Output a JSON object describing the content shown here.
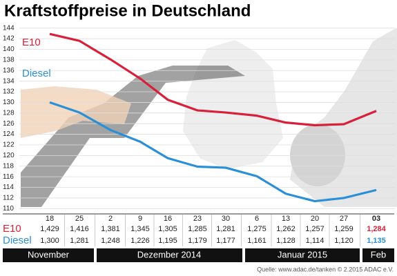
{
  "chart_data": {
    "type": "line",
    "title": "Kraftstoffpreise in Deutschland",
    "categories": [
      "18",
      "25",
      "2",
      "9",
      "16",
      "23",
      "30",
      "6",
      "13",
      "20",
      "27",
      "03"
    ],
    "x_groups": [
      "November",
      "Dezember 2014",
      "Januar 2015",
      "Feb"
    ],
    "series": [
      {
        "name": "E10",
        "color": "#d7203a",
        "values": [
          142.9,
          141.6,
          138.1,
          134.5,
          130.5,
          128.5,
          128.1,
          127.5,
          126.2,
          125.7,
          125.9,
          128.4
        ],
        "value_labels": [
          "1,429",
          "1,416",
          "1,381",
          "1,345",
          "1,305",
          "1,285",
          "1,281",
          "1,275",
          "1,262",
          "1,257",
          "1,259",
          "1,284"
        ]
      },
      {
        "name": "Diesel",
        "color": "#2a8fd6",
        "values": [
          130.0,
          128.1,
          124.8,
          122.6,
          119.5,
          117.9,
          117.7,
          116.1,
          112.8,
          111.4,
          112.0,
          113.5
        ],
        "value_labels": [
          "1,300",
          "1,281",
          "1,248",
          "1,226",
          "1,195",
          "1,179",
          "1,177",
          "1,161",
          "1,128",
          "1,114",
          "1,120",
          "1,135"
        ]
      }
    ],
    "ylim": [
      109,
      145
    ],
    "yticks": [
      110,
      112,
      114,
      116,
      118,
      120,
      122,
      124,
      126,
      128,
      130,
      132,
      134,
      136,
      138,
      140,
      142,
      144
    ],
    "grid": true,
    "source": "Quelle: www.adac.de/tanken  © 2.2015  ADAC e.V."
  }
}
